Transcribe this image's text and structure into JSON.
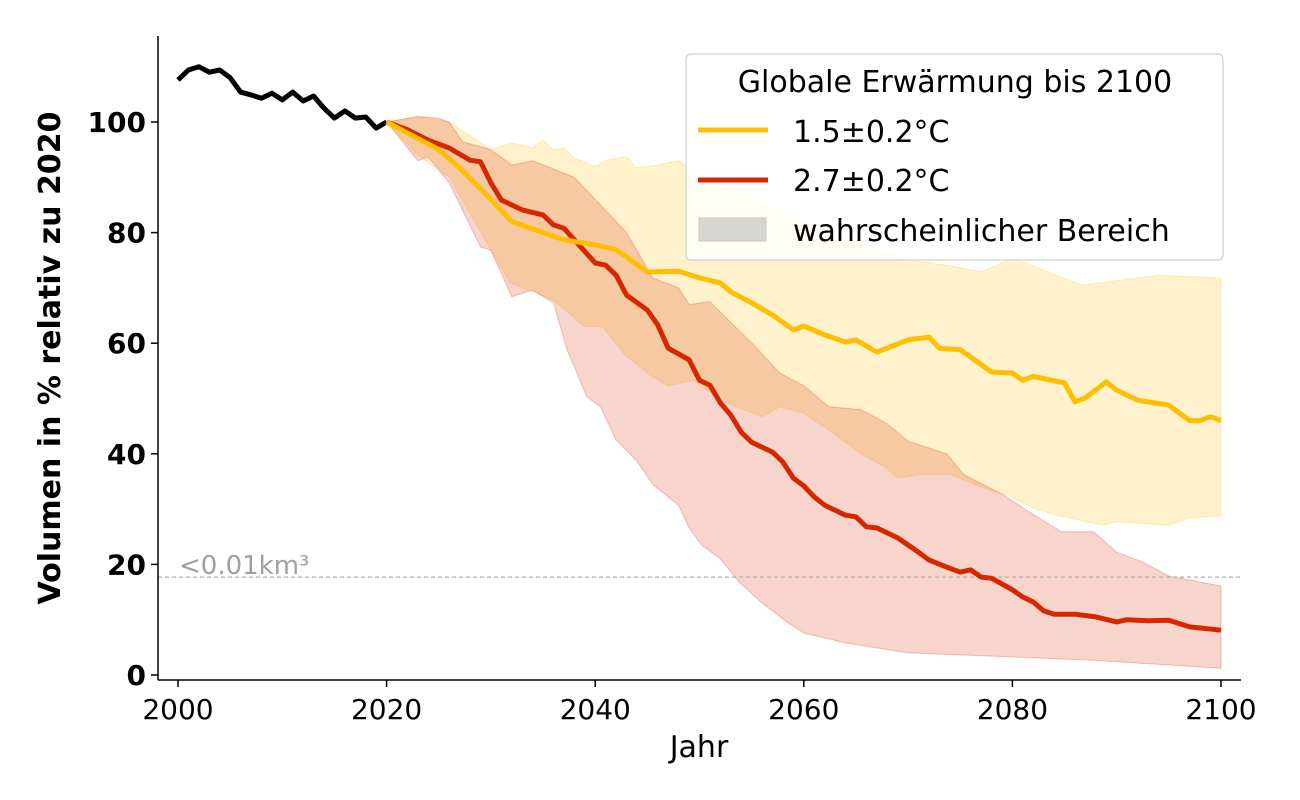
{
  "chart_data": {
    "type": "line",
    "title": "",
    "xlabel": "Jahr",
    "ylabel": "Volumen in % relativ zu 2020",
    "xlim": [
      1998.1,
      2103.9
    ],
    "ylim": [
      -1,
      115.5
    ],
    "xticks": [
      2000,
      2020,
      2040,
      2060,
      2080,
      2100
    ],
    "yticks": [
      0,
      20,
      40,
      60,
      80,
      100
    ],
    "grid": false,
    "legend": {
      "title": "Globale Erwärmung bis 2100",
      "placement": "top-right",
      "entries": [
        "1.5±0.2°C",
        "2.7±0.2°C",
        "wahrscheinlicher Bereich"
      ],
      "range_patch_color": "#d6d6d2"
    },
    "reference_line": {
      "y": 17.7,
      "label": "<0.01km³",
      "color": "#b0b0b0"
    },
    "observed": {
      "color": "#000000",
      "x": [
        2000,
        2001,
        2002,
        2003,
        2004,
        2005,
        2006,
        2007,
        2008,
        2009,
        2010,
        2011,
        2012,
        2013,
        2014,
        2015,
        2016,
        2017,
        2018,
        2019,
        2020
      ],
      "y": [
        107.6,
        109.4,
        110,
        109,
        109.4,
        108,
        105.4,
        104.9,
        104.3,
        105.2,
        104,
        105.4,
        103.8,
        104.7,
        102.5,
        100.7,
        102,
        100.7,
        100.9,
        98.9,
        100
      ]
    },
    "series": [
      {
        "name": "1.5±0.2°C",
        "color": "#ffbf00",
        "x": [
          2020,
          2025,
          2027,
          2030,
          2032,
          2035,
          2037,
          2040,
          2042,
          2045,
          2048,
          2050,
          2052,
          2053,
          2055,
          2057,
          2059,
          2060,
          2062,
          2064,
          2065,
          2067,
          2070,
          2072,
          2073,
          2075,
          2078,
          2080,
          2081,
          2082,
          2085,
          2086,
          2087,
          2089,
          2090,
          2092,
          2095,
          2097,
          2098,
          2099,
          2100
        ],
        "y": [
          100,
          95,
          91.7,
          86,
          82,
          80,
          78.7,
          77.8,
          76.9,
          72.9,
          73,
          71.8,
          70.9,
          69.3,
          67.3,
          65.1,
          62.4,
          63.1,
          61.5,
          60.2,
          60.6,
          58.4,
          60.6,
          61.1,
          59.1,
          58.8,
          54.8,
          54.6,
          53.3,
          54,
          52.8,
          49.4,
          50.1,
          53,
          51.5,
          49.7,
          48.8,
          46,
          46,
          46.7,
          46
        ],
        "range_upper": {
          "x": [
            2020,
            2023,
            2026,
            2030,
            2032,
            2034,
            2035,
            2036,
            2037,
            2038,
            2040,
            2041,
            2043,
            2044,
            2046,
            2048,
            2050,
            2055,
            2060,
            2065,
            2070,
            2073.7,
            2077,
            2080,
            2086.7,
            2094,
            2100
          ],
          "y": [
            100,
            101,
            100,
            95,
            96.2,
            95.3,
            96.7,
            95,
            95.3,
            93.5,
            91.9,
            93.1,
            93.7,
            91.7,
            92.2,
            93,
            90,
            86,
            82,
            78,
            75,
            74.1,
            72.9,
            75.4,
            70.5,
            72.3,
            71.8
          ]
        },
        "range_lower": {
          "x": [
            2020,
            2023,
            2026,
            2028,
            2031.8,
            2036,
            2039,
            2040.7,
            2042.8,
            2045,
            2047,
            2049.5,
            2052,
            2056,
            2057.7,
            2060,
            2062.4,
            2065.5,
            2068,
            2069,
            2071.3,
            2074,
            2078,
            2079.6,
            2082,
            2084,
            2088.6,
            2090,
            2095,
            2097,
            2100
          ],
          "y": [
            100,
            94,
            90,
            83.5,
            71,
            67.8,
            63,
            63,
            58,
            54.6,
            52.3,
            53.3,
            49.7,
            46.7,
            48.5,
            47.4,
            44.3,
            40,
            37.4,
            35.6,
            36.3,
            36.3,
            33.3,
            32.5,
            30.2,
            29,
            27.1,
            27.7,
            27.1,
            28.4,
            28.8
          ]
        }
      },
      {
        "name": "2.7±0.2°C",
        "color": "#d62800",
        "x": [
          2020,
          2022,
          2024,
          2026,
          2028,
          2029,
          2030,
          2031,
          2033,
          2035,
          2036,
          2037,
          2040,
          2041,
          2042,
          2043,
          2045,
          2046,
          2047,
          2049,
          2050,
          2051,
          2052,
          2053,
          2054,
          2055,
          2057,
          2058,
          2059,
          2060,
          2061,
          2062,
          2063,
          2064,
          2065,
          2066,
          2067,
          2068,
          2069,
          2070,
          2071,
          2072,
          2074,
          2075,
          2076,
          2077,
          2078,
          2080,
          2081,
          2082,
          2083,
          2084,
          2086,
          2088,
          2090,
          2091,
          2093,
          2095,
          2097,
          2098,
          2100
        ],
        "y": [
          100,
          98.6,
          96.7,
          95.3,
          93.1,
          92.8,
          89,
          85.9,
          84.1,
          83.2,
          81.4,
          80.8,
          74.5,
          74.1,
          72.3,
          68.7,
          66,
          63.3,
          59.1,
          57,
          53.3,
          52.4,
          49.2,
          47,
          43.9,
          42.1,
          40.3,
          38.5,
          35.6,
          34.2,
          32.2,
          30.7,
          29.8,
          28.9,
          28.6,
          26.8,
          26.6,
          25.7,
          24.8,
          23.5,
          22.2,
          20.8,
          19.3,
          18.6,
          19,
          17.7,
          17.5,
          15.4,
          14.1,
          13.2,
          11.6,
          11,
          11,
          10.5,
          9.6,
          10,
          9.8,
          9.9,
          8.7,
          8.5,
          8.1
        ],
        "range_upper": {
          "x": [
            2020,
            2023,
            2025,
            2026,
            2027.3,
            2030,
            2032,
            2034,
            2038,
            2039.5,
            2043,
            2045.5,
            2048,
            2049,
            2051,
            2053.4,
            2055.3,
            2057.7,
            2060,
            2062.4,
            2065.5,
            2068,
            2070,
            2073.7,
            2075.3,
            2079.2,
            2082,
            2084.7,
            2087.8,
            2090,
            2092.5,
            2095,
            2100
          ],
          "y": [
            100,
            101,
            100.7,
            100,
            96.4,
            95,
            92.2,
            93,
            90,
            87,
            80,
            71.8,
            70,
            67,
            67.5,
            63,
            59.5,
            54.6,
            52.3,
            48.5,
            48,
            45.4,
            42.3,
            40,
            36.3,
            32.5,
            29,
            25.9,
            25.9,
            22.2,
            20.4,
            17.9,
            16.1
          ]
        },
        "range_lower": {
          "x": [
            2020,
            2023,
            2024,
            2026,
            2029,
            2030,
            2032,
            2034,
            2036,
            2037.3,
            2039.2,
            2040.5,
            2042,
            2044,
            2045.5,
            2048,
            2049,
            2050.2,
            2052,
            2053.8,
            2056,
            2058.5,
            2060,
            2064,
            2070,
            2079.6,
            2087.5,
            2095,
            2100
          ],
          "y": [
            100,
            93,
            93.7,
            89,
            77.4,
            76.8,
            68.4,
            69.6,
            67.3,
            58.8,
            50.3,
            48.5,
            42.5,
            38.7,
            34.5,
            30.7,
            26.6,
            23.5,
            21,
            16.8,
            13,
            9.4,
            7.6,
            5.8,
            4,
            3.3,
            2.7,
            1.8,
            1.2
          ]
        }
      }
    ]
  }
}
